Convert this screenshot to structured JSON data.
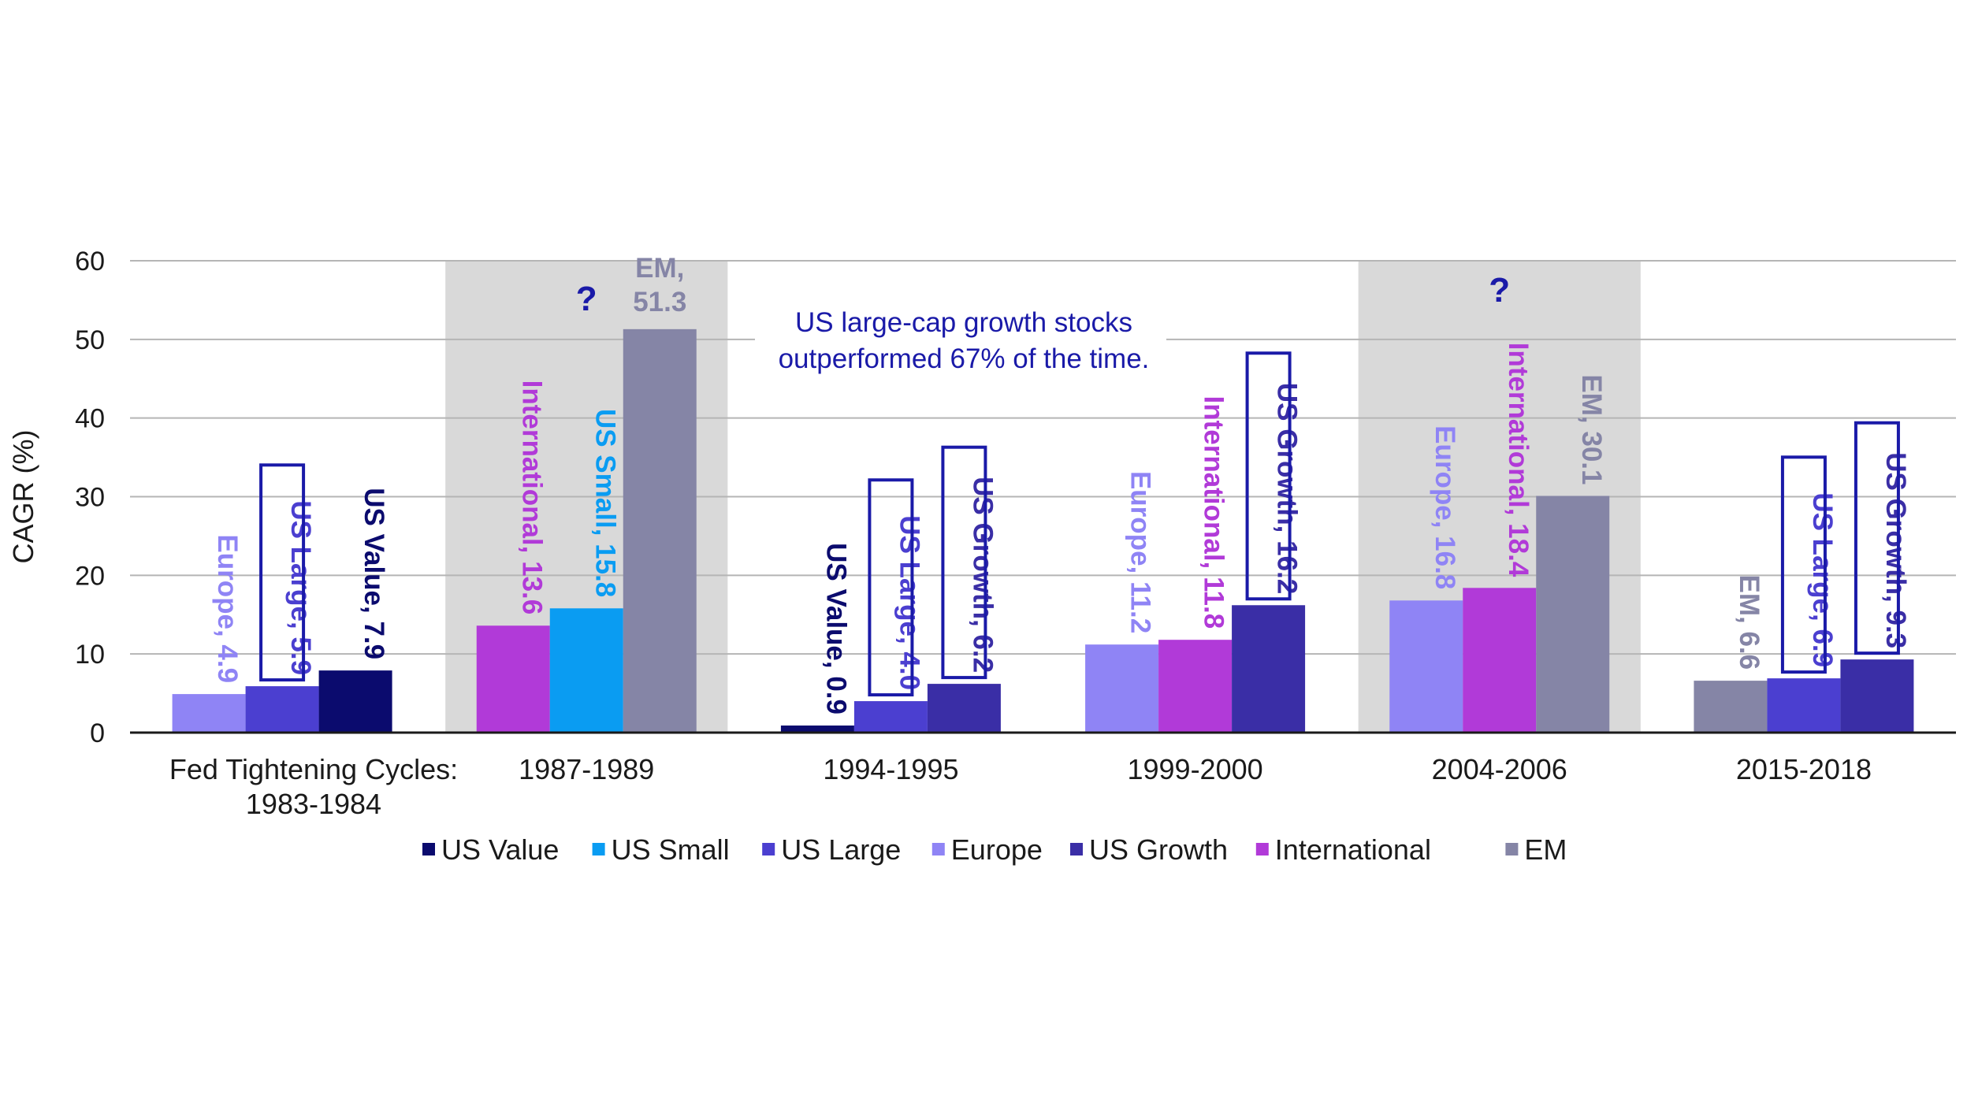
{
  "chart_data": {
    "type": "bar",
    "ylabel": "CAGR (%)",
    "ylim": [
      0,
      60
    ],
    "yticks": [
      0,
      10,
      20,
      30,
      40,
      50,
      60
    ],
    "grid": true,
    "legend_position": "bottom",
    "categories": [
      [
        "Fed Tightening Cycles:",
        "1983-1984"
      ],
      [
        "1987-1989"
      ],
      [
        "1994-1995"
      ],
      [
        "1999-2000"
      ],
      [
        "2004-2006"
      ],
      [
        "2015-2018"
      ]
    ],
    "shaded_categories": [
      1,
      4
    ],
    "question_marks": [
      {
        "category": 1,
        "text": "?"
      },
      {
        "category": 4,
        "text": "?"
      }
    ],
    "annotation": {
      "lines": [
        "US large-cap growth stocks",
        "outperformed 67% of the time."
      ],
      "color": "#1a1aa8"
    },
    "series": [
      {
        "name": "US Value",
        "color": "#0b0b6e"
      },
      {
        "name": "US Small",
        "color": "#0a9cf2"
      },
      {
        "name": "US Large",
        "color": "#4b3fd0"
      },
      {
        "name": "Europe",
        "color": "#8f84f5"
      },
      {
        "name": "US Growth",
        "color": "#3a2ea6"
      },
      {
        "name": "International",
        "color": "#b13ad8"
      },
      {
        "name": "EM",
        "color": "#8585a6"
      }
    ],
    "groups": [
      {
        "bars": [
          {
            "series": "Europe",
            "value": 4.9,
            "label": "Europe, 4.9",
            "boxed": false
          },
          {
            "series": "US Large",
            "value": 5.9,
            "label": "US Large, 5.9",
            "boxed": true
          },
          {
            "series": "US Value",
            "value": 7.9,
            "label": "US Value, 7.9",
            "boxed": false
          }
        ]
      },
      {
        "bars": [
          {
            "series": "International",
            "value": 13.6,
            "label": "International, 13.6",
            "boxed": false
          },
          {
            "series": "US Small",
            "value": 15.8,
            "label": "US Small, 15.8",
            "boxed": false
          },
          {
            "series": "EM",
            "value": 51.3,
            "label": "EM, 51.3",
            "boxed": false,
            "horizontal": true
          }
        ]
      },
      {
        "bars": [
          {
            "series": "US Value",
            "value": 0.9,
            "label": "US Value, 0.9",
            "boxed": false
          },
          {
            "series": "US Large",
            "value": 4.0,
            "label": "US Large, 4.0",
            "boxed": true
          },
          {
            "series": "US Growth",
            "value": 6.2,
            "label": "US Growth, 6.2",
            "boxed": true
          }
        ]
      },
      {
        "bars": [
          {
            "series": "Europe",
            "value": 11.2,
            "label": "Europe, 11.2",
            "boxed": false
          },
          {
            "series": "International",
            "value": 11.8,
            "label": "International, 11.8",
            "boxed": false
          },
          {
            "series": "US Growth",
            "value": 16.2,
            "label": "US Growth, 16.2",
            "boxed": true
          }
        ]
      },
      {
        "bars": [
          {
            "series": "Europe",
            "value": 16.8,
            "label": "Europe, 16.8",
            "boxed": false
          },
          {
            "series": "International",
            "value": 18.4,
            "label": "International, 18.4",
            "boxed": false
          },
          {
            "series": "EM",
            "value": 30.1,
            "label": "EM, 30.1",
            "boxed": false
          }
        ]
      },
      {
        "bars": [
          {
            "series": "EM",
            "value": 6.6,
            "label": "EM, 6.6",
            "boxed": false
          },
          {
            "series": "US Large",
            "value": 6.9,
            "label": "US Large, 6.9",
            "boxed": true
          },
          {
            "series": "US Growth",
            "value": 9.3,
            "label": "US Growth, 9.3",
            "boxed": true
          }
        ]
      }
    ]
  }
}
